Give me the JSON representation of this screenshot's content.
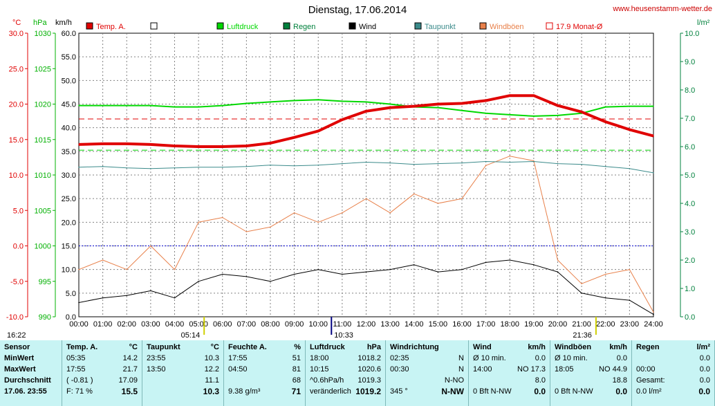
{
  "window": {
    "title": "Dienstag, 17.06.2014",
    "site": "www.heusenstamm-wetter.de"
  },
  "axis_units": {
    "temp": "°C",
    "pressure": "hPa",
    "wind": "km/h",
    "rain": "l/m²"
  },
  "legend": [
    {
      "label": "Temp. A.",
      "color": "#e00000"
    },
    {
      "label": "",
      "color": "#ffffff"
    },
    {
      "label": "Luftdruck",
      "color": "#00d800"
    },
    {
      "label": "Regen",
      "color": "#00803c"
    },
    {
      "label": "Wind",
      "color": "#000000"
    },
    {
      "label": "Taupunkt",
      "color": "#3a8a8a"
    },
    {
      "label": "Windböen",
      "color": "#e8804a"
    },
    {
      "label": "17.9 Monat-Ø",
      "color": "#e00000"
    }
  ],
  "markers": {
    "sunrise": "05:14",
    "sunset": "21:36",
    "time_left": "16:22",
    "time_mid": "10:33"
  },
  "chart_data": {
    "type": "line",
    "x_ticks": [
      "00:00",
      "01:00",
      "02:00",
      "03:00",
      "04:00",
      "05:00",
      "06:00",
      "07:00",
      "08:00",
      "09:00",
      "10:00",
      "11:00",
      "12:00",
      "13:00",
      "14:00",
      "15:00",
      "16:00",
      "17:00",
      "18:00",
      "19:00",
      "20:00",
      "21:00",
      "22:00",
      "23:00",
      "24:00"
    ],
    "y_axes": {
      "temp": {
        "unit": "°C",
        "ticks": [
          "30.0",
          "25.0",
          "20.0",
          "15.0",
          "10.0",
          "5.0",
          "0.0",
          "-5.0",
          "-10.0"
        ],
        "range": [
          -10,
          30
        ]
      },
      "pressure": {
        "unit": "hPa",
        "ticks": [
          "1030",
          "1025",
          "1020",
          "1015",
          "1010",
          "1005",
          "1000",
          "995",
          "990"
        ],
        "range": [
          990,
          1030
        ]
      },
      "wind": {
        "unit": "km/h",
        "ticks": [
          "60.0",
          "55.0",
          "50.0",
          "45.0",
          "40.0",
          "35.0",
          "30.0",
          "25.0",
          "20.0",
          "15.0",
          "10.0",
          "5.0",
          "0.0"
        ],
        "range": [
          0,
          60
        ]
      },
      "rain": {
        "unit": "l/m²",
        "ticks": [
          "10.0",
          "9.0",
          "8.0",
          "7.0",
          "6.0",
          "5.0",
          "4.0",
          "3.0",
          "2.0",
          "1.0",
          "0.0"
        ],
        "range": [
          0,
          10
        ]
      }
    },
    "grid": true,
    "reference_lines": {
      "temp_monthly_avg": 17.9,
      "pressure_reference": 1013.5,
      "wind_reference_kmh": 15.0
    },
    "series": [
      {
        "name": "Temp. A.",
        "axis": "temp",
        "x": [
          0,
          1,
          2,
          3,
          4,
          5,
          6,
          7,
          8,
          9,
          10,
          11,
          12,
          13,
          14,
          15,
          16,
          17,
          18,
          19,
          20,
          21,
          22,
          23,
          24
        ],
        "values": [
          14.3,
          14.4,
          14.4,
          14.3,
          14.1,
          14.0,
          14.0,
          14.1,
          14.5,
          15.3,
          16.2,
          17.8,
          19.0,
          19.5,
          19.7,
          20.0,
          20.1,
          20.5,
          21.2,
          21.2,
          19.8,
          18.9,
          17.5,
          16.4,
          15.5
        ]
      },
      {
        "name": "Luftdruck",
        "axis": "pressure",
        "x": [
          0,
          1,
          2,
          3,
          4,
          5,
          6,
          7,
          8,
          9,
          10,
          11,
          12,
          13,
          14,
          15,
          16,
          17,
          18,
          19,
          20,
          21,
          22,
          23,
          24
        ],
        "values": [
          1019.8,
          1019.8,
          1019.8,
          1019.8,
          1019.6,
          1019.6,
          1019.8,
          1020.1,
          1020.3,
          1020.5,
          1020.6,
          1020.4,
          1020.3,
          1020.0,
          1019.6,
          1019.5,
          1019.1,
          1018.7,
          1018.5,
          1018.3,
          1018.4,
          1018.7,
          1019.6,
          1019.7,
          1019.7
        ]
      },
      {
        "name": "Taupunkt",
        "axis": "temp",
        "x": [
          0,
          1,
          2,
          3,
          4,
          5,
          6,
          7,
          8,
          9,
          10,
          11,
          12,
          13,
          14,
          15,
          16,
          17,
          18,
          19,
          20,
          21,
          22,
          23,
          24
        ],
        "values": [
          11.1,
          11.2,
          11.0,
          10.9,
          11.0,
          11.1,
          11.1,
          11.2,
          11.4,
          11.3,
          11.4,
          11.6,
          11.8,
          11.7,
          11.5,
          11.6,
          11.7,
          11.9,
          11.8,
          11.9,
          11.6,
          11.5,
          11.2,
          10.9,
          10.3
        ]
      },
      {
        "name": "Wind",
        "axis": "wind",
        "x": [
          0,
          1,
          2,
          3,
          4,
          5,
          6,
          7,
          8,
          9,
          10,
          11,
          12,
          13,
          14,
          15,
          16,
          17,
          18,
          19,
          20,
          21,
          22,
          23,
          24
        ],
        "values": [
          3.0,
          4.0,
          4.5,
          5.5,
          4.0,
          7.5,
          9.0,
          8.5,
          7.5,
          9.0,
          10.0,
          9.0,
          9.5,
          10.0,
          11.0,
          9.5,
          10.0,
          11.5,
          12.0,
          11.0,
          9.5,
          5.0,
          4.0,
          3.5,
          0.5
        ]
      },
      {
        "name": "Windböen",
        "axis": "wind",
        "x": [
          0,
          1,
          2,
          3,
          4,
          5,
          6,
          7,
          8,
          9,
          10,
          11,
          12,
          13,
          14,
          15,
          16,
          17,
          18,
          19,
          20,
          21,
          22,
          23,
          24
        ],
        "values": [
          10.0,
          12.0,
          10.0,
          15.0,
          10.0,
          20.0,
          21.0,
          18.0,
          19.0,
          22.0,
          20.0,
          22.0,
          25.0,
          22.0,
          26.0,
          24.0,
          25.0,
          32.0,
          34.0,
          33.0,
          12.0,
          7.0,
          9.0,
          10.0,
          1.0
        ]
      }
    ]
  },
  "table": {
    "headers": {
      "sensor": "Sensor",
      "temp": "Temp. A.",
      "temp_unit": "°C",
      "dew": "Taupunkt",
      "dew_unit": "°C",
      "hum": "Feuchte A.",
      "hum_unit": "%",
      "press": "Luftdruck",
      "press_unit": "hPa",
      "dir": "Windrichtung",
      "wind": "Wind",
      "wind_unit": "km/h",
      "gust": "Windböen",
      "gust_unit": "km/h",
      "rain": "Regen",
      "rain_unit": "l/m²"
    },
    "row_labels": [
      "MinWert",
      "MaxWert",
      "Durchschnitt",
      "17.06. 23:55"
    ],
    "temp": [
      [
        "05:35",
        "14.2"
      ],
      [
        "17:55",
        "21.7"
      ],
      [
        "( -0.81 )",
        "17.09"
      ],
      [
        "F: 71 %",
        "15.5"
      ]
    ],
    "dew": [
      [
        "23:55",
        "10.3"
      ],
      [
        "13:50",
        "12.2"
      ],
      [
        "",
        "11.1"
      ],
      [
        "",
        "10.3"
      ]
    ],
    "hum": [
      [
        "17:55",
        "51"
      ],
      [
        "04:50",
        "81"
      ],
      [
        "",
        "68"
      ],
      [
        "9.38 g/m³",
        "71"
      ]
    ],
    "press": [
      [
        "18:00",
        "1018.2"
      ],
      [
        "10:15",
        "1020.6"
      ],
      [
        "^0.6hPa/h",
        "1019.3"
      ],
      [
        "veränderlich",
        "1019.2"
      ]
    ],
    "dir": [
      [
        "02:35",
        "N"
      ],
      [
        "00:30",
        "N"
      ],
      [
        "",
        "N-NO"
      ],
      [
        "345 °",
        "N-NW"
      ]
    ],
    "wind": [
      [
        "Ø 10 min.",
        "0.0"
      ],
      [
        "14:00",
        "NO 17.3"
      ],
      [
        "",
        "8.0"
      ],
      [
        "0 Bft N-NW",
        "0.0"
      ]
    ],
    "gust": [
      [
        "Ø 10 min.",
        "0.0"
      ],
      [
        "18:05",
        "NO 44.9"
      ],
      [
        "",
        "18.8"
      ],
      [
        "0 Bft N-NW",
        "0.0"
      ]
    ],
    "rain": [
      [
        "",
        "0.0"
      ],
      [
        "00:00",
        "0.0"
      ],
      [
        "Gesamt:",
        "0.0"
      ],
      [
        "0.0 l/m²",
        "0.0"
      ]
    ]
  }
}
